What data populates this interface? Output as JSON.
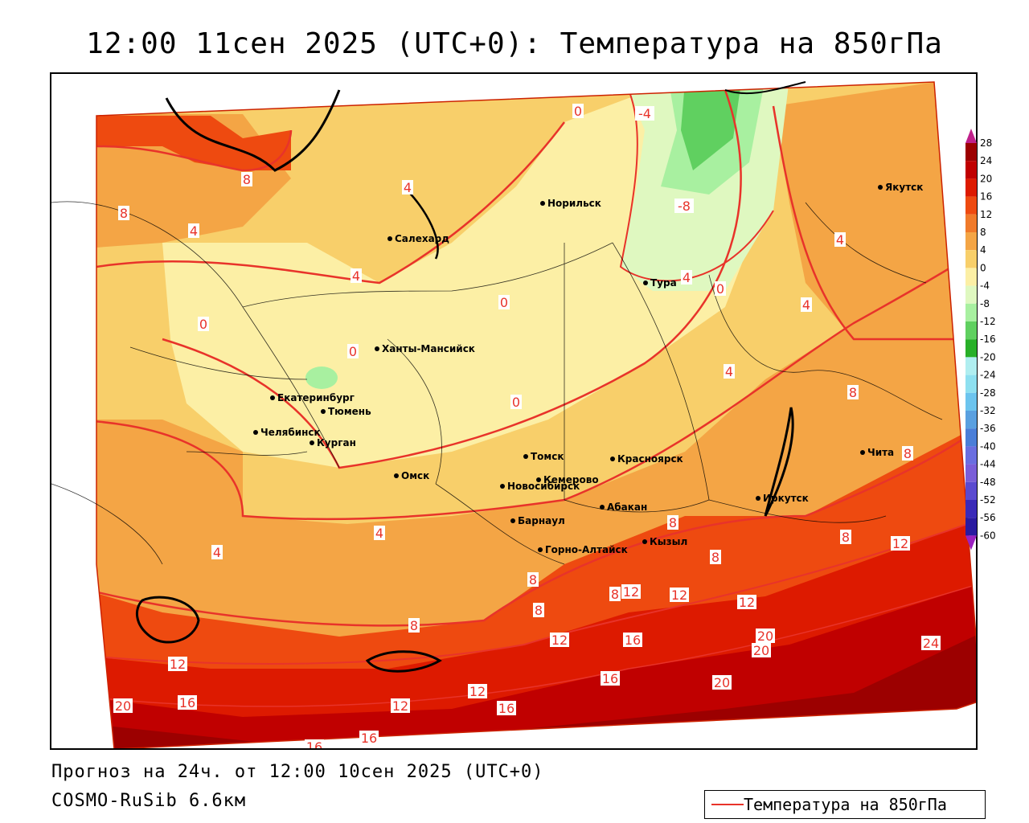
{
  "title": "12:00 11сен 2025 (UTC+0): Температура на 850гПа",
  "forecast_text": "Прогноз на 24ч. от 12:00 10сен 2025 (UTC+0)",
  "model_text": "COSMO-RuSib 6.6км",
  "legend": {
    "label": "Температура на 850гПа",
    "line_color": "#e8332a"
  },
  "colorbar": {
    "ticks": [
      "28",
      "24",
      "20",
      "16",
      "12",
      "8",
      "4",
      "0",
      "-4",
      "-8",
      "-12",
      "-16",
      "-20",
      "-24",
      "-28",
      "-32",
      "-36",
      "-40",
      "-44",
      "-48",
      "-52",
      "-56",
      "-60"
    ],
    "colors": [
      "#9c0000",
      "#c00000",
      "#dd1a00",
      "#ee4a10",
      "#f07a2a",
      "#f4a545",
      "#f8cf6a",
      "#fcefa5",
      "#dff8c0",
      "#a8f0a0",
      "#60d060",
      "#28b028",
      "#b0eef0",
      "#8ee0f0",
      "#6cc4ee",
      "#5aa0e0",
      "#4a7ed8",
      "#6a6ee0",
      "#7a5ed8",
      "#5a4ad0",
      "#3a2ab8",
      "#2a1aa0",
      "#c020c0"
    ],
    "top_arrow_color": "#c0208a",
    "bottom_arrow_color": "#9a20c0"
  },
  "cities": [
    {
      "name": "Салехард"
    },
    {
      "name": "Норильск"
    },
    {
      "name": "Тура"
    },
    {
      "name": "Якутск"
    },
    {
      "name": "Ханты-Мансийск"
    },
    {
      "name": "Екатеринбург"
    },
    {
      "name": "Тюмень"
    },
    {
      "name": "Челябинск"
    },
    {
      "name": "Курган"
    },
    {
      "name": "Омск"
    },
    {
      "name": "Новосибирск"
    },
    {
      "name": "Томск"
    },
    {
      "name": "Красноярск"
    },
    {
      "name": "Кемерово"
    },
    {
      "name": "Барнаул"
    },
    {
      "name": "Абакан"
    },
    {
      "name": "Горно-Алтайск"
    },
    {
      "name": "Кызыл"
    },
    {
      "name": "Иркутск"
    },
    {
      "name": "Чита"
    }
  ],
  "isoline_labels": [
    "0",
    "-4",
    "-8",
    "8",
    "8",
    "4",
    "4",
    "4",
    "0",
    "0",
    "4",
    "4",
    "0",
    "0",
    "0",
    "4",
    "4",
    "8",
    "8",
    "4",
    "4",
    "8",
    "8",
    "12",
    "8",
    "8",
    "8",
    "8",
    "12",
    "12",
    "12",
    "8",
    "12",
    "16",
    "16",
    "20",
    "24",
    "12",
    "16",
    "12",
    "16",
    "20",
    "12",
    "20",
    "16",
    "20",
    "16"
  ]
}
